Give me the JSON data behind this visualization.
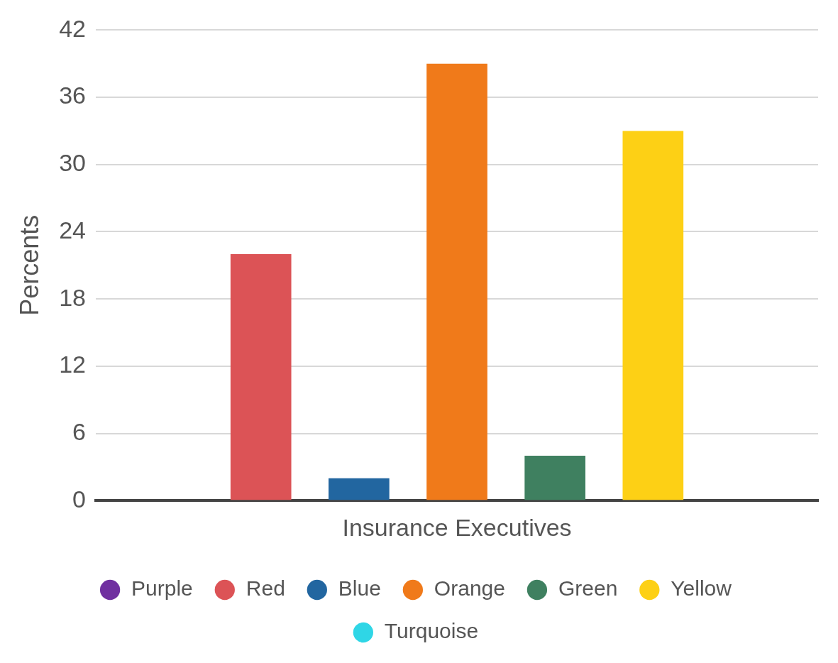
{
  "chart_data": {
    "type": "bar",
    "ylabel": "Percents",
    "categories": [
      "Insurance Executives"
    ],
    "series": [
      {
        "name": "Purple",
        "color": "#7030a0",
        "values": [
          0
        ]
      },
      {
        "name": "Red",
        "color": "#dc5356",
        "values": [
          22
        ]
      },
      {
        "name": "Blue",
        "color": "#2266a0",
        "values": [
          2
        ]
      },
      {
        "name": "Orange",
        "color": "#f07a1a",
        "values": [
          39
        ]
      },
      {
        "name": "Green",
        "color": "#3f8060",
        "values": [
          4
        ]
      },
      {
        "name": "Yellow",
        "color": "#fdd015",
        "values": [
          33
        ]
      },
      {
        "name": "Turquoise",
        "color": "#2fd6e6",
        "values": [
          0
        ]
      }
    ],
    "ylim": [
      0,
      42
    ],
    "yticks": [
      0,
      6,
      12,
      18,
      24,
      30,
      36,
      42
    ],
    "grid": "y",
    "legend": "bottom"
  }
}
